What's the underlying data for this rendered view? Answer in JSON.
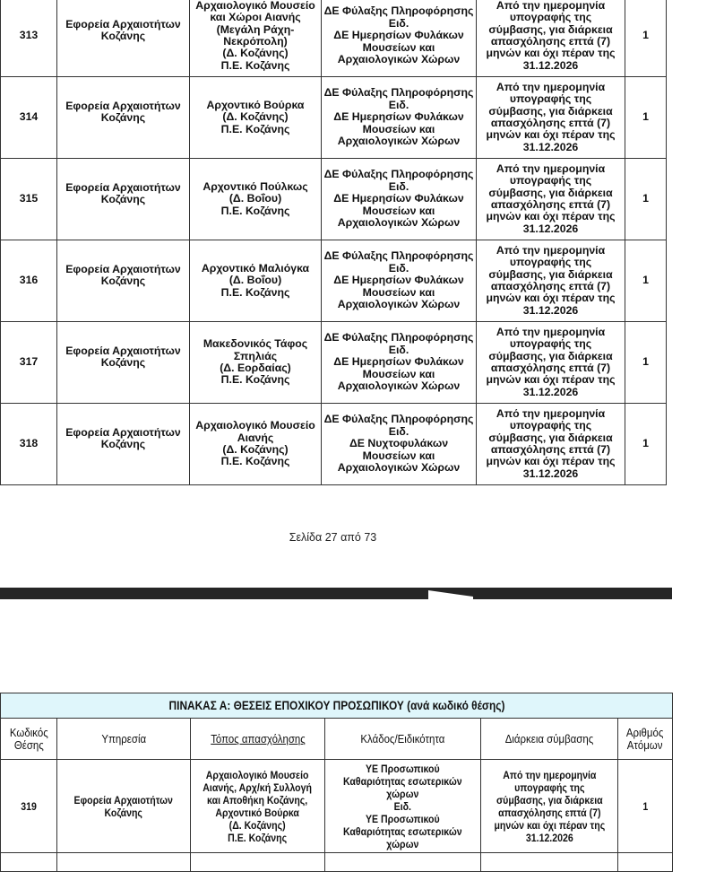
{
  "table1": {
    "rows": [
      {
        "code": "313",
        "service": "Εφορεία Αρχαιοτήτων\nΚοζάνης",
        "place": "Αρχαιολογικό Μουσείο\nκαι Χώροι Αιανής\n(Μεγάλη Ράχη-\nΝεκρόπολη)\n(Δ. Κοζάνης)\nΠ.Ε. Κοζάνης",
        "branch": "ΔΕ Φύλαξης Πληροφόρησης\nΕιδ.\nΔΕ Ημερησίων Φυλάκων\nΜουσείων και\nΑρχαιολογικών Χώρων",
        "duration": "Από την ημερομηνία\nυπογραφής της\nσύμβασης, για διάρκεια\nαπασχόλησης επτά (7)\nμηνών και όχι πέραν της\n31.12.2026",
        "count": "1"
      },
      {
        "code": "314",
        "service": "Εφορεία Αρχαιοτήτων\nΚοζάνης",
        "place": "Αρχοντικό Βούρκα\n(Δ. Κοζάνης)\nΠ.Ε. Κοζάνης",
        "branch": "ΔΕ Φύλαξης Πληροφόρησης\nΕιδ.\nΔΕ Ημερησίων Φυλάκων\nΜουσείων και\nΑρχαιολογικών Χώρων",
        "duration": "Από την ημερομηνία\nυπογραφής της\nσύμβασης, για διάρκεια\nαπασχόλησης επτά (7)\nμηνών και όχι πέραν της\n31.12.2026",
        "count": "1"
      },
      {
        "code": "315",
        "service": "Εφορεία Αρχαιοτήτων\nΚοζάνης",
        "place": "Αρχοντικό Πούλκως\n(Δ. Βοΐου)\nΠ.Ε. Κοζάνης",
        "branch": "ΔΕ Φύλαξης Πληροφόρησης\nΕιδ.\nΔΕ Ημερησίων Φυλάκων\nΜουσείων και\nΑρχαιολογικών Χώρων",
        "duration": "Από την ημερομηνία\nυπογραφής της\nσύμβασης, για διάρκεια\nαπασχόλησης επτά (7)\nμηνών και όχι πέραν της\n31.12.2026",
        "count": "1"
      },
      {
        "code": "316",
        "service": "Εφορεία Αρχαιοτήτων\nΚοζάνης",
        "place": "Αρχοντικό Μαλιόγκα\n(Δ. Βοΐου)\nΠ.Ε. Κοζάνης",
        "branch": "ΔΕ Φύλαξης Πληροφόρησης\nΕιδ.\nΔΕ Ημερησίων Φυλάκων\nΜουσείων και\nΑρχαιολογικών Χώρων",
        "duration": "Από την ημερομηνία\nυπογραφής της\nσύμβασης, για διάρκεια\nαπασχόλησης επτά (7)\nμηνών και όχι πέραν της\n31.12.2026",
        "count": "1"
      },
      {
        "code": "317",
        "service": "Εφορεία Αρχαιοτήτων\nΚοζάνης",
        "place": "Μακεδονικός Τάφος\nΣπηλιάς\n(Δ. Εορδαίας)\nΠ.Ε. Κοζάνης",
        "branch": "ΔΕ Φύλαξης Πληροφόρησης\nΕιδ.\nΔΕ Ημερησίων Φυλάκων\nΜουσείων και\nΑρχαιολογικών Χώρων",
        "duration": "Από την ημερομηνία\nυπογραφής της\nσύμβασης, για διάρκεια\nαπασχόλησης επτά (7)\nμηνών και όχι πέραν της\n31.12.2026",
        "count": "1"
      },
      {
        "code": "318",
        "service": "Εφορεία Αρχαιοτήτων\nΚοζάνης",
        "place": "Αρχαιολογικό Μουσείο\nΑιανής\n(Δ. Κοζάνης)\nΠ.Ε.  Κοζάνης",
        "branch": "ΔΕ Φύλαξης Πληροφόρησης\nΕιδ.\nΔΕ  Νυχτοφυλάκων\nΜουσείων και\nΑρχαιολογικών Χώρων",
        "duration": "Από την ημερομηνία\nυπογραφής της\nσύμβασης, για διάρκεια\nαπασχόλησης επτά (7)\nμηνών και όχι πέραν της\n31.12.2026",
        "count": "1"
      }
    ]
  },
  "footer": {
    "page_label": "Σελίδα 27 από 73"
  },
  "table2": {
    "caption": "ΠΙΝΑΚΑΣ Α: ΘΕΣΕΙΣ ΕΠΟΧΙΚΟΥ ΠΡΟΣΩΠΙΚΟΥ (ανά κωδικό θέσης)",
    "caption_bg": "#dff6fb",
    "headers": [
      "Κωδικός\nΘέσης",
      "Υπηρεσία",
      "Τόπος απασχόλησης",
      "Κλάδος/Ειδικότητα",
      "Διάρκεια σύμβασης",
      "Αριθμός\nΑτόμων"
    ],
    "rows": [
      {
        "code": "319",
        "service": "Εφορεία Αρχαιοτήτων\nΚοζάνης",
        "place": "Αρχαιολογικό Μουσείο\nΑιανής, Αρχ/κή Συλλογή\nκαι Αποθήκη Κοζάνης,\nΑρχοντικό Βούρκα\n(Δ. Κοζάνης)\nΠ.Ε.  Κοζάνης",
        "branch": "ΥΕ Προσωπικού\nΚαθαριότητας εσωτερικών\nχώρων\nΕιδ.\nΥΕ Προσωπικού\nΚαθαριότητας εσωτερικών\nχώρων",
        "duration": "Από την ημερομηνία\nυπογραφής της\nσύμβασης, για διάρκεια\nαπασχόλησης επτά (7)\nμηνών και όχι πέραν της\n31.12.2026",
        "count": "1"
      }
    ]
  }
}
